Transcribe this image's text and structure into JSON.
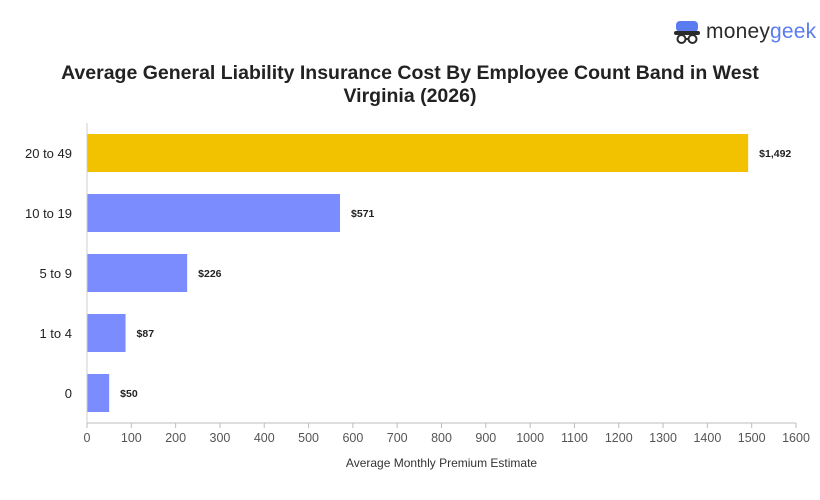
{
  "brand": {
    "name_part1": "money",
    "name_part2": "geek",
    "accent_color": "#5b7cf0",
    "icon": "moneygeek-mascot-icon"
  },
  "chart_data": {
    "type": "bar",
    "orientation": "horizontal",
    "title": "Average General Liability Insurance Cost By Employee Count Band in West Virginia (2026)",
    "xlabel": "Average Monthly Premium Estimate",
    "ylabel": "",
    "categories": [
      "20 to 49",
      "10 to 19",
      "5 to 9",
      "1 to 4",
      "0"
    ],
    "values": [
      1492,
      571,
      226,
      87,
      50
    ],
    "value_labels": [
      "$1,492",
      "$571",
      "$226",
      "$87",
      "$50"
    ],
    "colors": [
      "#f2c200",
      "#7b8cff",
      "#7b8cff",
      "#7b8cff",
      "#7b8cff"
    ],
    "xlim": [
      0,
      1600
    ],
    "xticks": [
      0,
      100,
      200,
      300,
      400,
      500,
      600,
      700,
      800,
      900,
      1000,
      1100,
      1200,
      1300,
      1400,
      1500,
      1600
    ],
    "grid": false,
    "legend": "none"
  }
}
